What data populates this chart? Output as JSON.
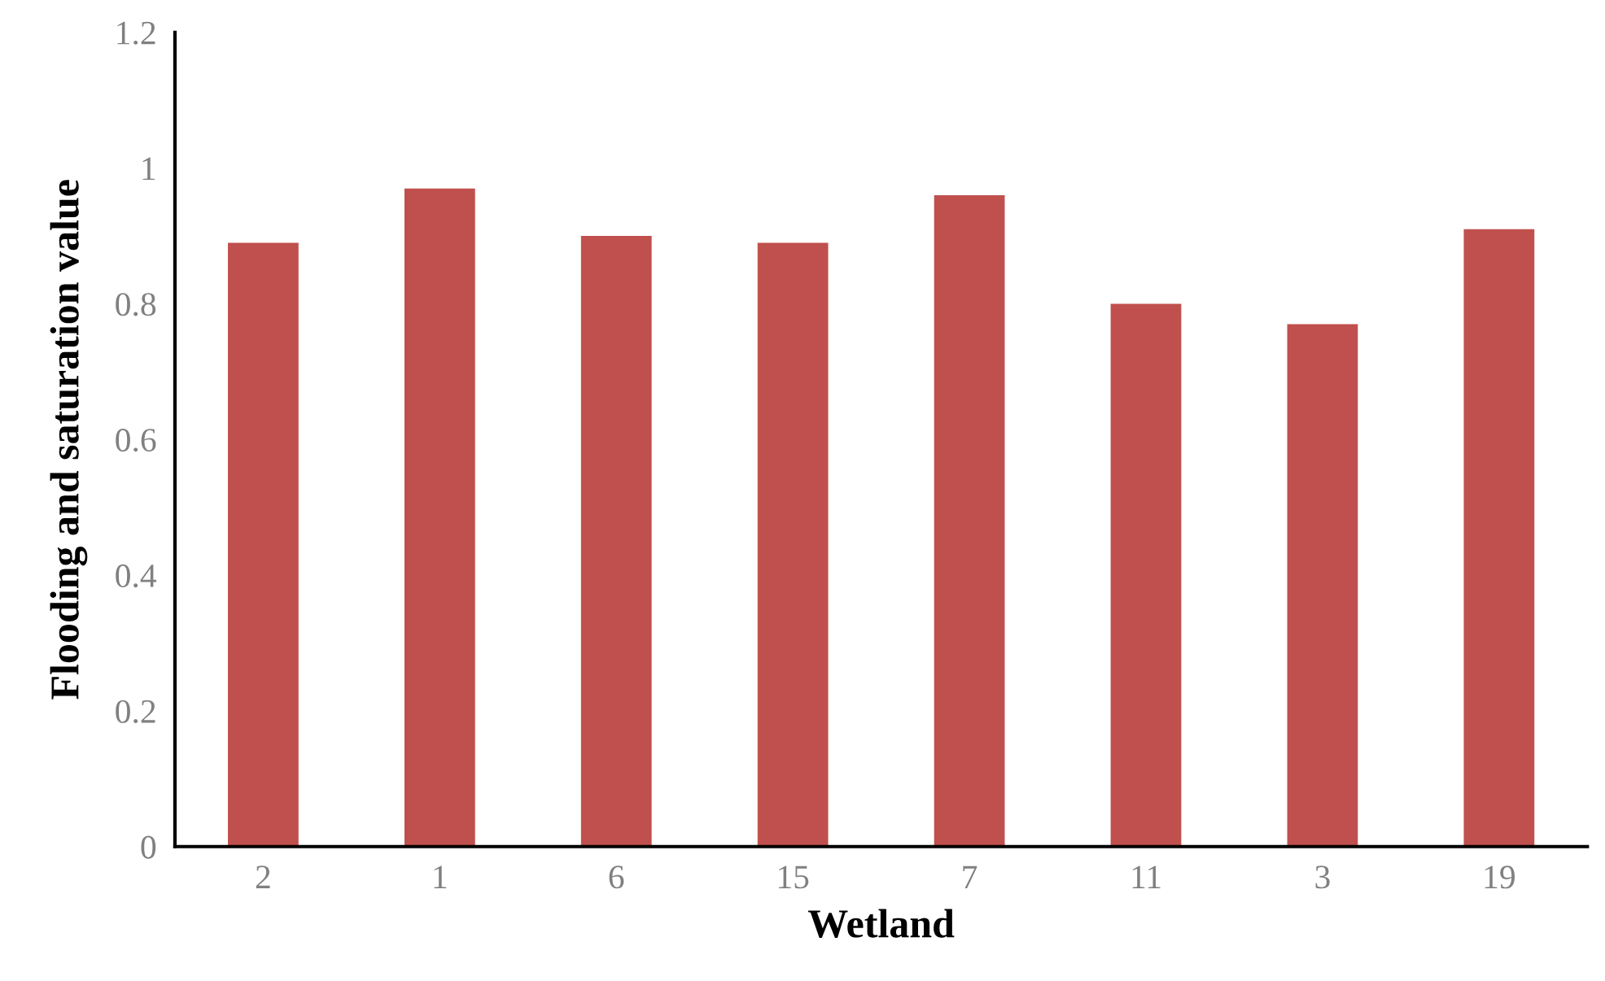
{
  "chart_data": {
    "type": "bar",
    "xlabel": "Wetland",
    "ylabel": "Flooding and saturation value",
    "categories": [
      "2",
      "1",
      "6",
      "15",
      "7",
      "11",
      "3",
      "19"
    ],
    "values": [
      0.89,
      0.97,
      0.9,
      0.89,
      0.96,
      0.8,
      0.77,
      0.91
    ],
    "color": "#c0504d",
    "ylim": [
      0,
      1.2
    ],
    "yticks": [
      0,
      0.2,
      0.4,
      0.6,
      0.8,
      1,
      1.2
    ],
    "grid": false,
    "legend": false
  }
}
